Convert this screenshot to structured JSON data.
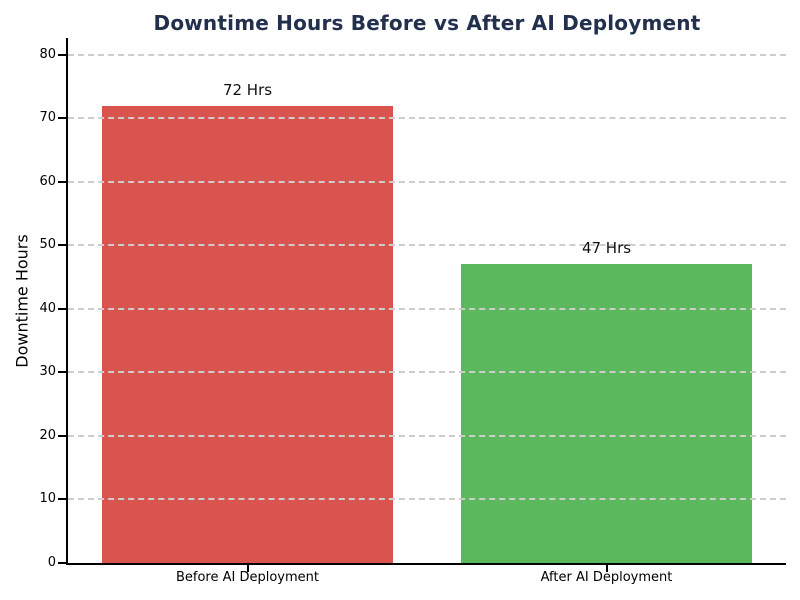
{
  "chart_data": {
    "type": "bar",
    "title": "Downtime Hours Before vs After AI Deployment",
    "categories": [
      "Before AI Deployment",
      "After AI Deployment"
    ],
    "values": [
      72,
      47
    ],
    "bar_labels": [
      "72 Hrs",
      "47 Hrs"
    ],
    "bar_colors": [
      "#d9534f",
      "#5cb85c"
    ],
    "xlabel": "",
    "ylabel": "Downtime Hours",
    "ylim": [
      0,
      82.5
    ],
    "yticks": [
      0,
      10,
      20,
      30,
      40,
      50,
      60,
      70,
      80
    ],
    "grid": "horizontal-dashed",
    "grid_above_bars": true,
    "legend": "none"
  },
  "colors": {
    "title": "#22304d",
    "grid": "#cdcdcd",
    "axis": "#000000",
    "background": "#ffffff"
  }
}
